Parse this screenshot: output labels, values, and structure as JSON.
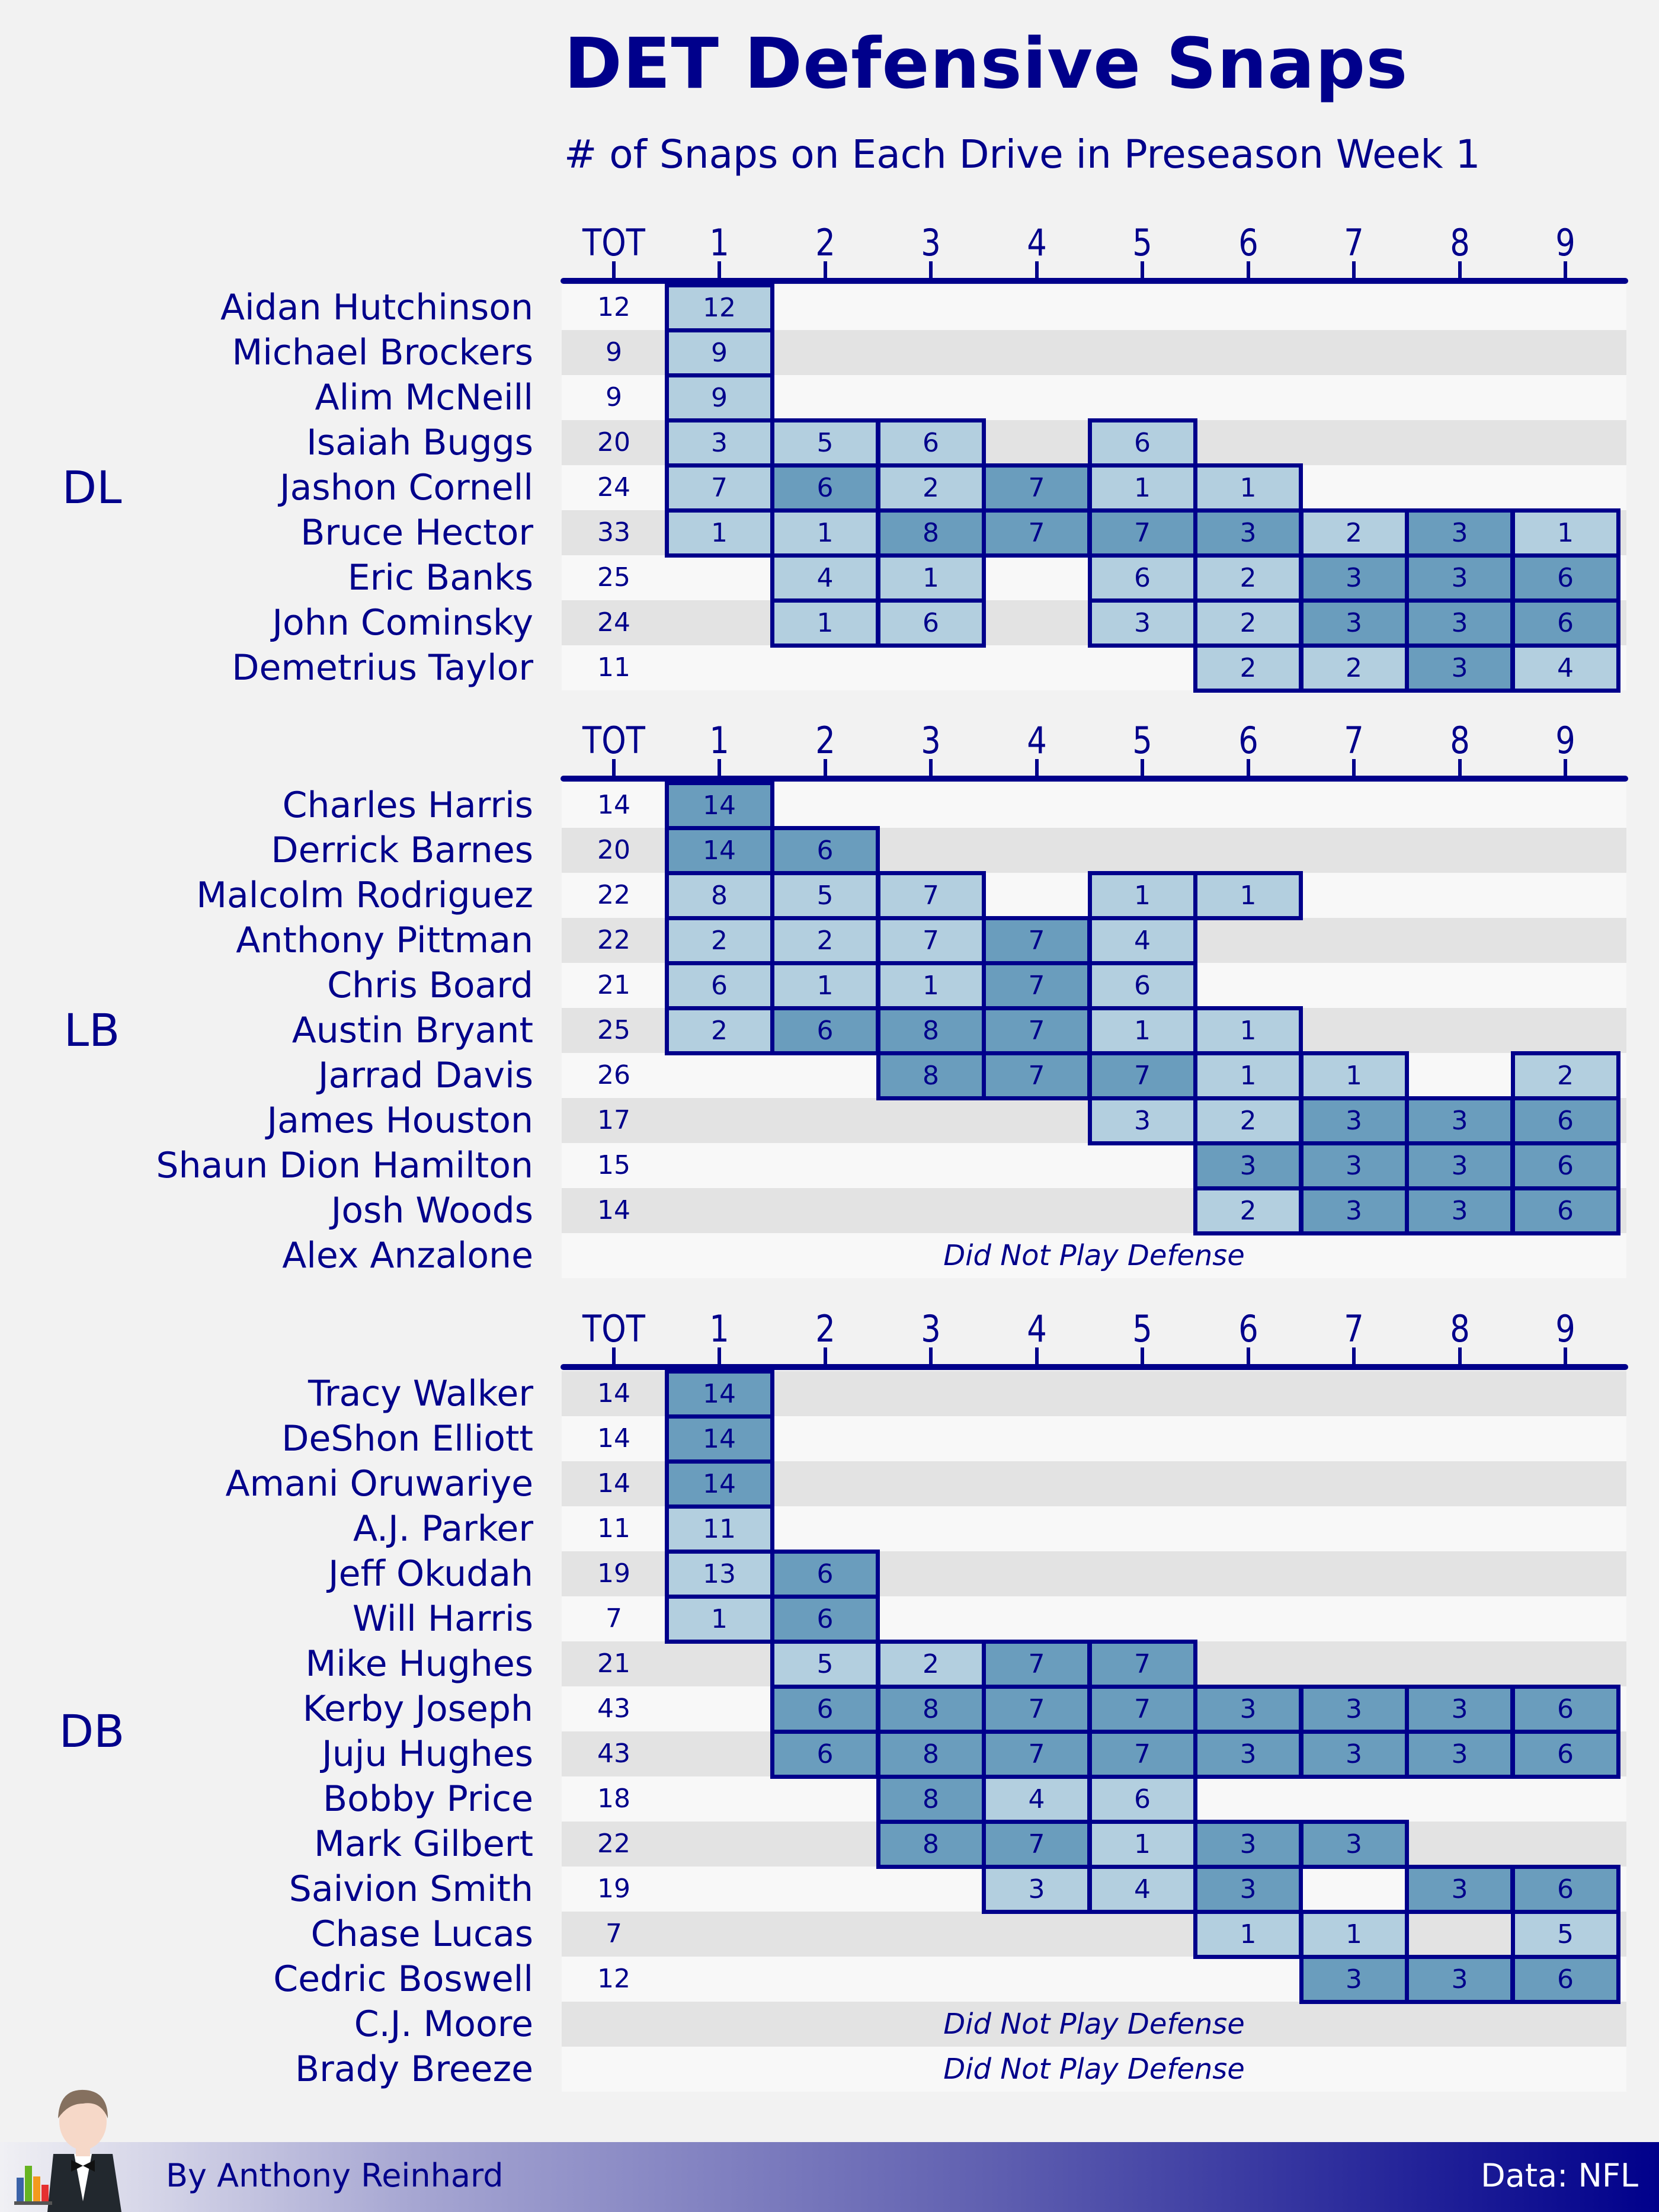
{
  "title": "DET Defensive Snaps",
  "subtitle": "# of Snaps on Each Drive in Preseason Week 1",
  "footer": {
    "credit": "By Anthony Reinhard",
    "source": "Data: NFL"
  },
  "colors": {
    "navy": "#00008b",
    "light_cell": "#b3cfdf",
    "dark_cell": "#6a9dbd",
    "row_light": "#f8f8f8",
    "row_dark": "#e3e3e3"
  },
  "chart_data": {
    "type": "table",
    "columns": [
      "TOT",
      "1",
      "2",
      "3",
      "4",
      "5",
      "6",
      "7",
      "8",
      "9"
    ],
    "dnp_text": "Did Not Play Defense",
    "groups": [
      {
        "label": "DL",
        "players": [
          {
            "name": "Aidan Hutchinson",
            "tot": 12,
            "drives": [
              12,
              null,
              null,
              null,
              null,
              null,
              null,
              null,
              null
            ]
          },
          {
            "name": "Michael Brockers",
            "tot": 9,
            "drives": [
              9,
              null,
              null,
              null,
              null,
              null,
              null,
              null,
              null
            ]
          },
          {
            "name": "Alim McNeill",
            "tot": 9,
            "drives": [
              9,
              null,
              null,
              null,
              null,
              null,
              null,
              null,
              null
            ]
          },
          {
            "name": "Isaiah Buggs",
            "tot": 20,
            "drives": [
              3,
              5,
              6,
              null,
              6,
              null,
              null,
              null,
              null
            ]
          },
          {
            "name": "Jashon Cornell",
            "tot": 24,
            "drives": [
              7,
              6,
              2,
              7,
              1,
              1,
              null,
              null,
              null
            ]
          },
          {
            "name": "Bruce Hector",
            "tot": 33,
            "drives": [
              1,
              1,
              8,
              7,
              7,
              3,
              2,
              3,
              1
            ]
          },
          {
            "name": "Eric Banks",
            "tot": 25,
            "drives": [
              null,
              4,
              1,
              null,
              6,
              2,
              3,
              3,
              6
            ]
          },
          {
            "name": "John Cominsky",
            "tot": 24,
            "drives": [
              null,
              1,
              6,
              null,
              3,
              2,
              3,
              3,
              6
            ]
          },
          {
            "name": "Demetrius Taylor",
            "tot": 11,
            "drives": [
              null,
              null,
              null,
              null,
              null,
              2,
              2,
              3,
              4
            ]
          }
        ]
      },
      {
        "label": "LB",
        "players": [
          {
            "name": "Charles Harris",
            "tot": 14,
            "drives": [
              14,
              null,
              null,
              null,
              null,
              null,
              null,
              null,
              null
            ]
          },
          {
            "name": "Derrick Barnes",
            "tot": 20,
            "drives": [
              14,
              6,
              null,
              null,
              null,
              null,
              null,
              null,
              null
            ]
          },
          {
            "name": "Malcolm Rodriguez",
            "tot": 22,
            "drives": [
              8,
              5,
              7,
              null,
              1,
              1,
              null,
              null,
              null
            ]
          },
          {
            "name": "Anthony Pittman",
            "tot": 22,
            "drives": [
              2,
              2,
              7,
              7,
              4,
              null,
              null,
              null,
              null
            ]
          },
          {
            "name": "Chris Board",
            "tot": 21,
            "drives": [
              6,
              1,
              1,
              7,
              6,
              null,
              null,
              null,
              null
            ]
          },
          {
            "name": "Austin Bryant",
            "tot": 25,
            "drives": [
              2,
              6,
              8,
              7,
              1,
              1,
              null,
              null,
              null
            ]
          },
          {
            "name": "Jarrad Davis",
            "tot": 26,
            "drives": [
              null,
              null,
              8,
              7,
              7,
              1,
              1,
              null,
              2
            ]
          },
          {
            "name": "James Houston",
            "tot": 17,
            "drives": [
              null,
              null,
              null,
              null,
              3,
              2,
              3,
              3,
              6
            ]
          },
          {
            "name": "Shaun Dion Hamilton",
            "tot": 15,
            "drives": [
              null,
              null,
              null,
              null,
              null,
              3,
              3,
              3,
              6
            ]
          },
          {
            "name": "Josh Woods",
            "tot": 14,
            "drives": [
              null,
              null,
              null,
              null,
              null,
              2,
              3,
              3,
              6
            ]
          },
          {
            "name": "Alex Anzalone",
            "tot": null,
            "dnp": true
          }
        ]
      },
      {
        "label": "DB",
        "players": [
          {
            "name": "Tracy Walker",
            "tot": 14,
            "drives": [
              14,
              null,
              null,
              null,
              null,
              null,
              null,
              null,
              null
            ]
          },
          {
            "name": "DeShon Elliott",
            "tot": 14,
            "drives": [
              14,
              null,
              null,
              null,
              null,
              null,
              null,
              null,
              null
            ]
          },
          {
            "name": "Amani Oruwariye",
            "tot": 14,
            "drives": [
              14,
              null,
              null,
              null,
              null,
              null,
              null,
              null,
              null
            ]
          },
          {
            "name": "A.J. Parker",
            "tot": 11,
            "drives": [
              11,
              null,
              null,
              null,
              null,
              null,
              null,
              null,
              null
            ]
          },
          {
            "name": "Jeff Okudah",
            "tot": 19,
            "drives": [
              13,
              6,
              null,
              null,
              null,
              null,
              null,
              null,
              null
            ]
          },
          {
            "name": "Will Harris",
            "tot": 7,
            "drives": [
              1,
              6,
              null,
              null,
              null,
              null,
              null,
              null,
              null
            ]
          },
          {
            "name": "Mike Hughes",
            "tot": 21,
            "drives": [
              null,
              5,
              2,
              7,
              7,
              null,
              null,
              null,
              null
            ]
          },
          {
            "name": "Kerby Joseph",
            "tot": 43,
            "drives": [
              null,
              6,
              8,
              7,
              7,
              3,
              3,
              3,
              6
            ]
          },
          {
            "name": "Juju Hughes",
            "tot": 43,
            "drives": [
              null,
              6,
              8,
              7,
              7,
              3,
              3,
              3,
              6
            ]
          },
          {
            "name": "Bobby Price",
            "tot": 18,
            "drives": [
              null,
              null,
              8,
              4,
              6,
              null,
              null,
              null,
              null
            ]
          },
          {
            "name": "Mark Gilbert",
            "tot": 22,
            "drives": [
              null,
              null,
              8,
              7,
              1,
              3,
              3,
              null,
              null
            ]
          },
          {
            "name": "Saivion Smith",
            "tot": 19,
            "drives": [
              null,
              null,
              null,
              3,
              4,
              3,
              null,
              3,
              6
            ]
          },
          {
            "name": "Chase Lucas",
            "tot": 7,
            "drives": [
              null,
              null,
              null,
              null,
              null,
              1,
              1,
              null,
              5
            ]
          },
          {
            "name": "Cedric Boswell",
            "tot": 12,
            "drives": [
              null,
              null,
              null,
              null,
              null,
              null,
              3,
              3,
              6
            ]
          },
          {
            "name": "C.J. Moore",
            "tot": null,
            "dnp": true
          },
          {
            "name": "Brady Breeze",
            "tot": null,
            "dnp": true
          }
        ]
      }
    ]
  }
}
